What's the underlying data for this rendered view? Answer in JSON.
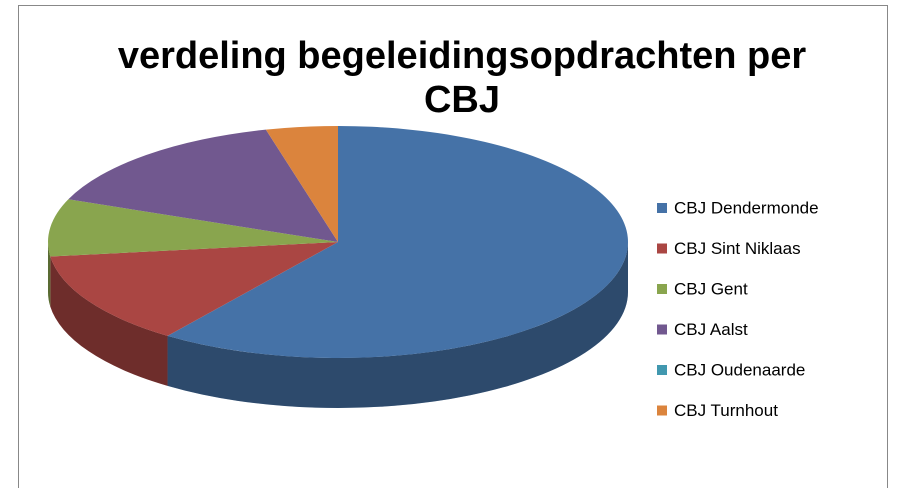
{
  "chart_data": {
    "type": "pie",
    "title": "verdeling begeleidingsopdrachten per CBJ",
    "categories": [
      "CBJ Dendermonde",
      "CBJ Sint Niklaas",
      "CBJ Gent",
      "CBJ Aalst",
      "CBJ Oudenaarde",
      "CBJ Turnhout"
    ],
    "values": [
      60,
      13,
      8,
      15,
      0,
      4
    ],
    "colors": [
      "#4572a7",
      "#aa4643",
      "#89a54e",
      "#71588f",
      "#4198af",
      "#db843d"
    ],
    "legend": "right"
  }
}
